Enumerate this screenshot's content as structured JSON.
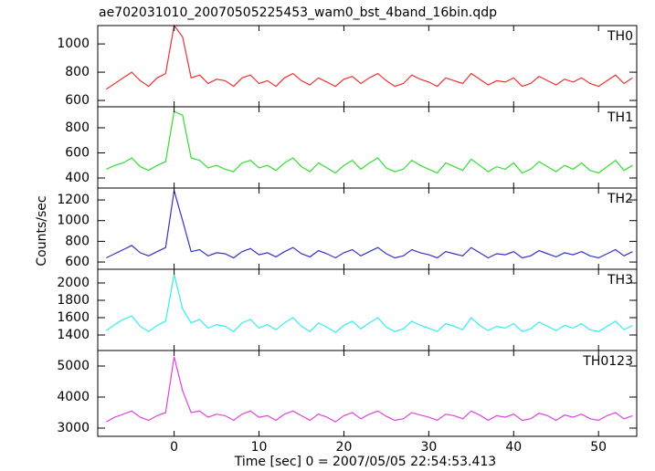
{
  "chart_data": [
    {
      "type": "line",
      "title": "ae702031010_20070505225453_wam0_bst_4band_16bin.qdp",
      "x": [
        -8,
        -7,
        -6,
        -5,
        -4,
        -3,
        -2,
        -1,
        0,
        1,
        2,
        3,
        4,
        5,
        6,
        7,
        8,
        9,
        10,
        11,
        12,
        13,
        14,
        15,
        16,
        17,
        18,
        19,
        20,
        21,
        22,
        23,
        24,
        25,
        26,
        27,
        28,
        29,
        30,
        31,
        32,
        33,
        34,
        35,
        36,
        37,
        38,
        39,
        40,
        41,
        42,
        43,
        44,
        45,
        46,
        47,
        48,
        49,
        50,
        51,
        52,
        53,
        54
      ],
      "xlim": [
        -9,
        54.5
      ],
      "xticks": [
        0,
        10,
        20,
        30,
        40,
        50
      ],
      "ylim": [
        555,
        1130
      ],
      "yticks": [
        600,
        800,
        1000
      ],
      "series": [
        {
          "name": "TH0",
          "color": "#ee3333",
          "values": [
            680,
            720,
            760,
            800,
            740,
            700,
            760,
            790,
            1130,
            1050,
            760,
            780,
            720,
            750,
            740,
            700,
            760,
            780,
            720,
            740,
            700,
            760,
            790,
            740,
            710,
            760,
            730,
            700,
            750,
            770,
            720,
            760,
            790,
            740,
            700,
            720,
            780,
            750,
            730,
            700,
            760,
            740,
            720,
            790,
            750,
            710,
            740,
            730,
            760,
            700,
            720,
            770,
            740,
            710,
            750,
            730,
            760,
            720,
            700,
            740,
            780,
            720,
            760
          ]
        }
      ]
    },
    {
      "type": "line",
      "x": [
        -8,
        -7,
        -6,
        -5,
        -4,
        -3,
        -2,
        -1,
        0,
        1,
        2,
        3,
        4,
        5,
        6,
        7,
        8,
        9,
        10,
        11,
        12,
        13,
        14,
        15,
        16,
        17,
        18,
        19,
        20,
        21,
        22,
        23,
        24,
        25,
        26,
        27,
        28,
        29,
        30,
        31,
        32,
        33,
        34,
        35,
        36,
        37,
        38,
        39,
        40,
        41,
        42,
        43,
        44,
        45,
        46,
        47,
        48,
        49,
        50,
        51,
        52,
        53,
        54
      ],
      "xlim": [
        -9,
        54.5
      ],
      "xticks": [
        0,
        10,
        20,
        30,
        40,
        50
      ],
      "ylim": [
        320,
        967
      ],
      "yticks": [
        400,
        600,
        800
      ],
      "series": [
        {
          "name": "TH1",
          "color": "#33dd33",
          "values": [
            470,
            500,
            520,
            560,
            490,
            460,
            500,
            530,
            930,
            900,
            560,
            540,
            480,
            500,
            470,
            450,
            520,
            540,
            480,
            500,
            460,
            520,
            560,
            490,
            450,
            520,
            480,
            440,
            500,
            540,
            470,
            520,
            560,
            480,
            450,
            470,
            540,
            500,
            470,
            440,
            520,
            490,
            460,
            550,
            500,
            450,
            490,
            470,
            520,
            440,
            470,
            530,
            490,
            450,
            500,
            470,
            520,
            460,
            440,
            490,
            540,
            460,
            500
          ]
        }
      ]
    },
    {
      "type": "line",
      "y_label": "Counts/sec",
      "x": [
        -8,
        -7,
        -6,
        -5,
        -4,
        -3,
        -2,
        -1,
        0,
        1,
        2,
        3,
        4,
        5,
        6,
        7,
        8,
        9,
        10,
        11,
        12,
        13,
        14,
        15,
        16,
        17,
        18,
        19,
        20,
        21,
        22,
        23,
        24,
        25,
        26,
        27,
        28,
        29,
        30,
        31,
        32,
        33,
        34,
        35,
        36,
        37,
        38,
        39,
        40,
        41,
        42,
        43,
        44,
        45,
        46,
        47,
        48,
        49,
        50,
        51,
        52,
        53,
        54
      ],
      "xlim": [
        -9,
        54.5
      ],
      "xticks": [
        0,
        10,
        20,
        30,
        40,
        50
      ],
      "ylim": [
        530,
        1315
      ],
      "yticks": [
        600,
        800,
        1000,
        1200
      ],
      "series": [
        {
          "name": "TH2",
          "color": "#3333cc",
          "values": [
            640,
            680,
            720,
            760,
            690,
            660,
            700,
            740,
            1290,
            1000,
            700,
            720,
            660,
            690,
            680,
            640,
            700,
            730,
            670,
            690,
            650,
            700,
            740,
            680,
            650,
            710,
            680,
            640,
            690,
            720,
            660,
            700,
            740,
            680,
            640,
            660,
            720,
            690,
            670,
            640,
            700,
            680,
            660,
            740,
            690,
            640,
            680,
            670,
            700,
            640,
            660,
            710,
            680,
            650,
            690,
            670,
            700,
            660,
            640,
            680,
            720,
            660,
            700
          ]
        }
      ]
    },
    {
      "type": "line",
      "x": [
        -8,
        -7,
        -6,
        -5,
        -4,
        -3,
        -2,
        -1,
        0,
        1,
        2,
        3,
        4,
        5,
        6,
        7,
        8,
        9,
        10,
        11,
        12,
        13,
        14,
        15,
        16,
        17,
        18,
        19,
        20,
        21,
        22,
        23,
        24,
        25,
        26,
        27,
        28,
        29,
        30,
        31,
        32,
        33,
        34,
        35,
        36,
        37,
        38,
        39,
        40,
        41,
        42,
        43,
        44,
        45,
        46,
        47,
        48,
        49,
        50,
        51,
        52,
        53,
        54
      ],
      "xlim": [
        -9,
        54.5
      ],
      "xticks": [
        0,
        10,
        20,
        30,
        40,
        50
      ],
      "ylim": [
        1221,
        2158
      ],
      "yticks": [
        1400,
        1600,
        1800,
        2000
      ],
      "series": [
        {
          "name": "TH3",
          "color": "#33eeee",
          "values": [
            1450,
            1520,
            1580,
            1620,
            1500,
            1440,
            1510,
            1560,
            2100,
            1700,
            1540,
            1580,
            1480,
            1520,
            1500,
            1440,
            1540,
            1580,
            1480,
            1520,
            1460,
            1540,
            1600,
            1500,
            1440,
            1540,
            1490,
            1430,
            1510,
            1560,
            1470,
            1540,
            1600,
            1490,
            1440,
            1470,
            1560,
            1510,
            1480,
            1440,
            1530,
            1500,
            1460,
            1600,
            1510,
            1450,
            1500,
            1480,
            1530,
            1440,
            1470,
            1550,
            1500,
            1450,
            1510,
            1480,
            1530,
            1460,
            1440,
            1500,
            1560,
            1460,
            1510
          ]
        }
      ]
    },
    {
      "type": "line",
      "x_label": "Time [sec] 0 = 2007/05/05 22:54:53.413",
      "x": [
        -8,
        -7,
        -6,
        -5,
        -4,
        -3,
        -2,
        -1,
        0,
        1,
        2,
        3,
        4,
        5,
        6,
        7,
        8,
        9,
        10,
        11,
        12,
        13,
        14,
        15,
        16,
        17,
        18,
        19,
        20,
        21,
        22,
        23,
        24,
        25,
        26,
        27,
        28,
        29,
        30,
        31,
        32,
        33,
        34,
        35,
        36,
        37,
        38,
        39,
        40,
        41,
        42,
        43,
        44,
        45,
        46,
        47,
        48,
        49,
        50,
        51,
        52,
        53,
        54
      ],
      "xlim": [
        -9,
        54.5
      ],
      "xticks": [
        0,
        10,
        20,
        30,
        40,
        50
      ],
      "ylim": [
        2735,
        5500
      ],
      "yticks": [
        3000,
        4000,
        5000
      ],
      "series": [
        {
          "name": "TH0123",
          "color": "#dd44dd",
          "values": [
            3200,
            3350,
            3450,
            3550,
            3350,
            3250,
            3400,
            3500,
            5300,
            4200,
            3500,
            3550,
            3350,
            3450,
            3400,
            3250,
            3450,
            3550,
            3350,
            3400,
            3250,
            3450,
            3550,
            3400,
            3250,
            3450,
            3350,
            3200,
            3400,
            3500,
            3300,
            3450,
            3550,
            3380,
            3250,
            3300,
            3500,
            3420,
            3350,
            3250,
            3450,
            3400,
            3300,
            3550,
            3420,
            3250,
            3400,
            3350,
            3450,
            3250,
            3300,
            3480,
            3400,
            3250,
            3420,
            3350,
            3450,
            3300,
            3250,
            3400,
            3500,
            3300,
            3400
          ]
        }
      ]
    }
  ]
}
